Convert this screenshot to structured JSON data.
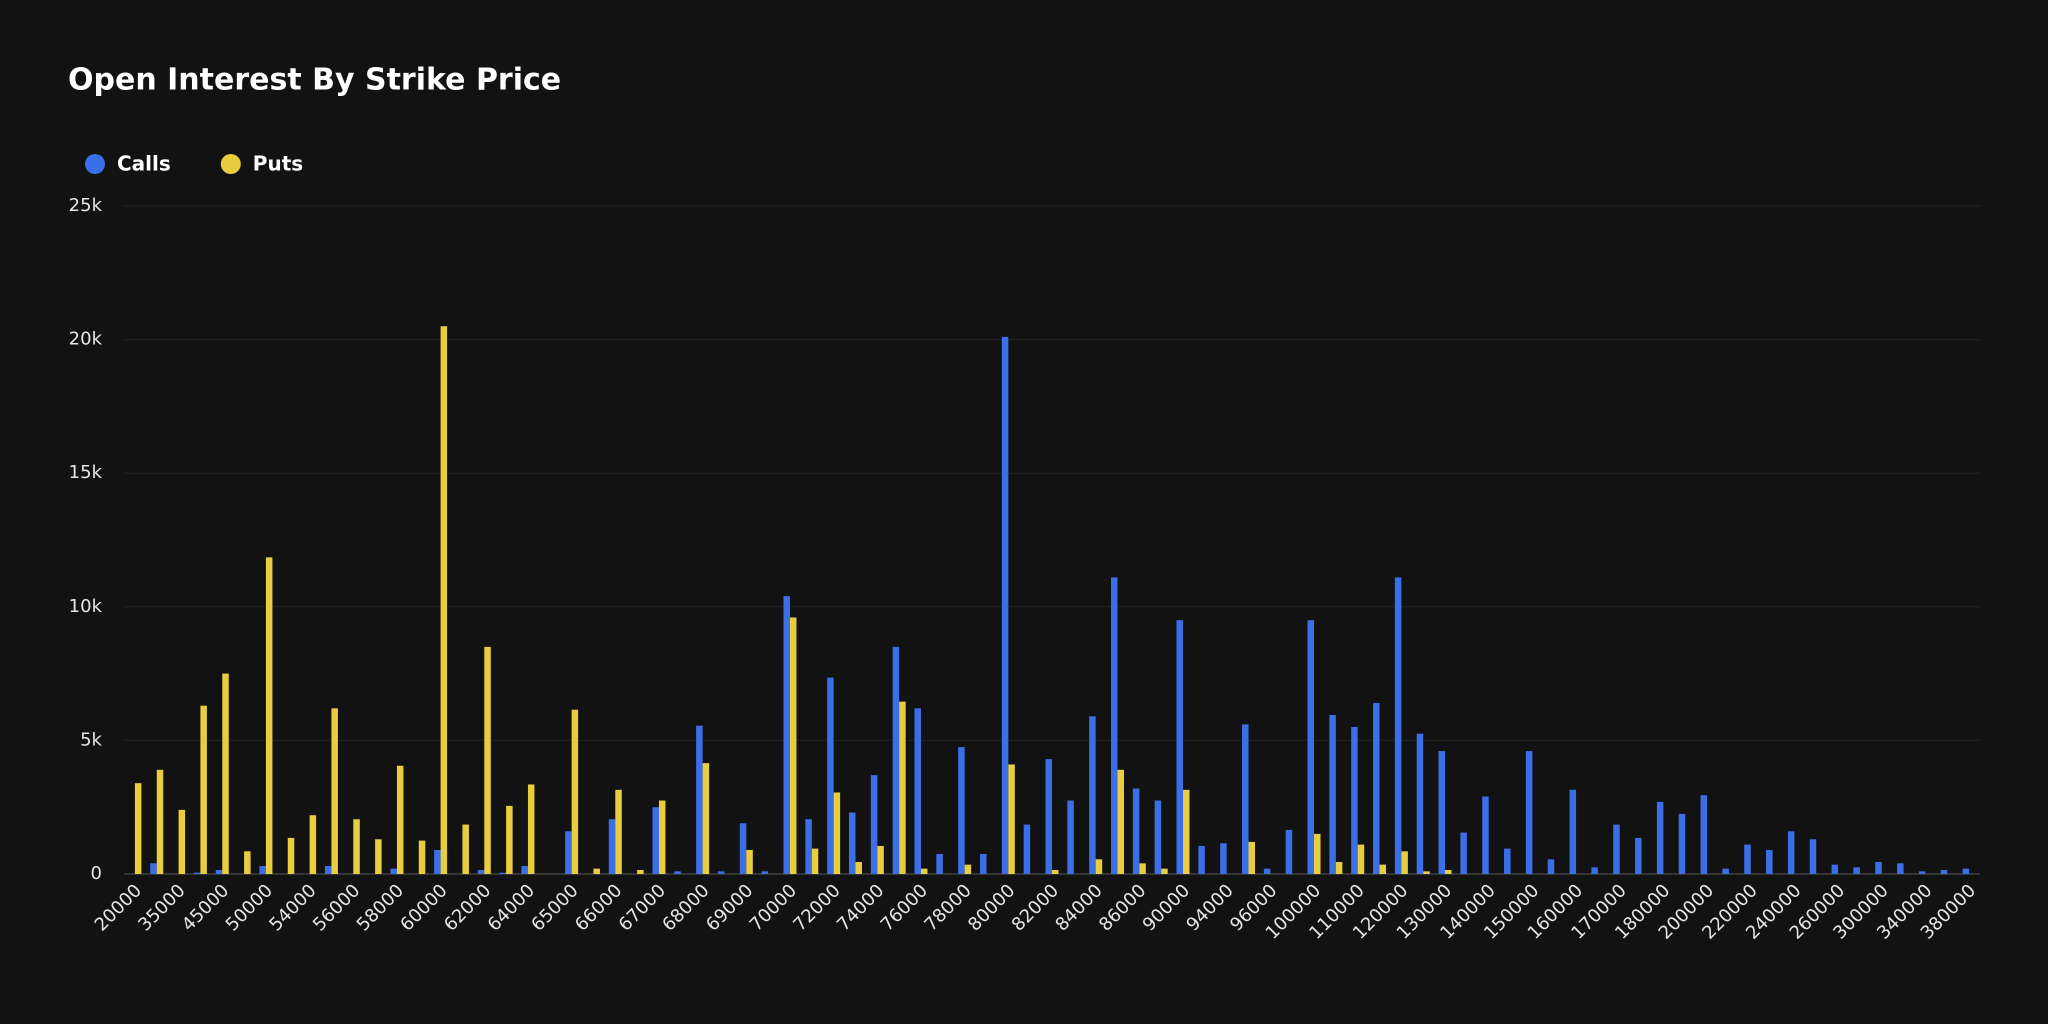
{
  "chart_data": {
    "type": "bar",
    "title": "Open Interest By Strike Price",
    "categories": [
      "20000",
      null,
      "35000",
      null,
      "45000",
      null,
      "50000",
      null,
      "54000",
      null,
      "56000",
      null,
      "58000",
      null,
      "60000",
      null,
      "62000",
      null,
      "64000",
      null,
      "65000",
      null,
      "66000",
      null,
      "67000",
      null,
      "68000",
      null,
      "69000",
      null,
      "70000",
      null,
      "72000",
      null,
      "74000",
      null,
      "76000",
      null,
      "78000",
      null,
      "80000",
      null,
      "82000",
      null,
      "84000",
      null,
      "86000",
      null,
      "90000",
      null,
      "94000",
      null,
      "96000",
      null,
      "100000",
      null,
      "110000",
      null,
      "120000",
      null,
      "130000",
      null,
      "140000",
      null,
      "150000",
      null,
      "160000",
      null,
      "170000",
      null,
      "180000",
      null,
      "200000",
      null,
      "220000",
      null,
      "240000",
      null,
      "260000",
      null,
      "300000",
      null,
      "340000",
      null,
      "380000"
    ],
    "series": [
      {
        "name": "Calls",
        "color": "#3b6fe8",
        "values": [
          0,
          400,
          0,
          50,
          150,
          0,
          300,
          0,
          0,
          300,
          0,
          0,
          200,
          0,
          900,
          0,
          150,
          50,
          300,
          0,
          1600,
          0,
          2050,
          0,
          2500,
          100,
          5550,
          100,
          1900,
          100,
          10400,
          2050,
          7350,
          2300,
          3700,
          8500,
          6200,
          750,
          4750,
          750,
          20100,
          1850,
          4300,
          2750,
          5900,
          11100,
          3200,
          2750,
          9500,
          1050,
          1150,
          5600,
          200,
          1650,
          9500,
          5950,
          5500,
          6400,
          11100,
          5250,
          4600,
          1550,
          2900,
          950,
          4600,
          550,
          3150,
          250,
          1850,
          1350,
          2700,
          2250,
          2950,
          200,
          1100,
          900,
          1600,
          1300,
          350,
          250,
          450,
          400,
          100,
          150,
          200
        ]
      },
      {
        "name": "Puts",
        "color": "#e8cd3f",
        "values": [
          3400,
          3900,
          2400,
          6300,
          7500,
          850,
          11850,
          1350,
          2200,
          6200,
          2050,
          1300,
          4050,
          1250,
          20500,
          1850,
          8500,
          2550,
          3350,
          0,
          6150,
          200,
          3150,
          150,
          2750,
          0,
          4150,
          0,
          900,
          0,
          9600,
          950,
          3050,
          450,
          1050,
          6450,
          200,
          0,
          350,
          0,
          4100,
          0,
          150,
          0,
          550,
          3900,
          400,
          200,
          3150,
          0,
          0,
          1200,
          0,
          0,
          1500,
          450,
          1100,
          350,
          850,
          100,
          150,
          0,
          0,
          0,
          0,
          0,
          0,
          0,
          0,
          0,
          0,
          0,
          0,
          0,
          0,
          0,
          0,
          0,
          0,
          0,
          0,
          0,
          0,
          0,
          0
        ]
      }
    ],
    "ylim": [
      0,
      25000
    ],
    "yticks": [
      0,
      {
        "value": 5000,
        "label": "5k"
      },
      {
        "value": 10000,
        "label": "10k"
      },
      {
        "value": 15000,
        "label": "15k"
      },
      {
        "value": 20000,
        "label": "20k"
      },
      {
        "value": 25000,
        "label": "25k"
      }
    ],
    "grid": true,
    "legend": "top-left"
  }
}
